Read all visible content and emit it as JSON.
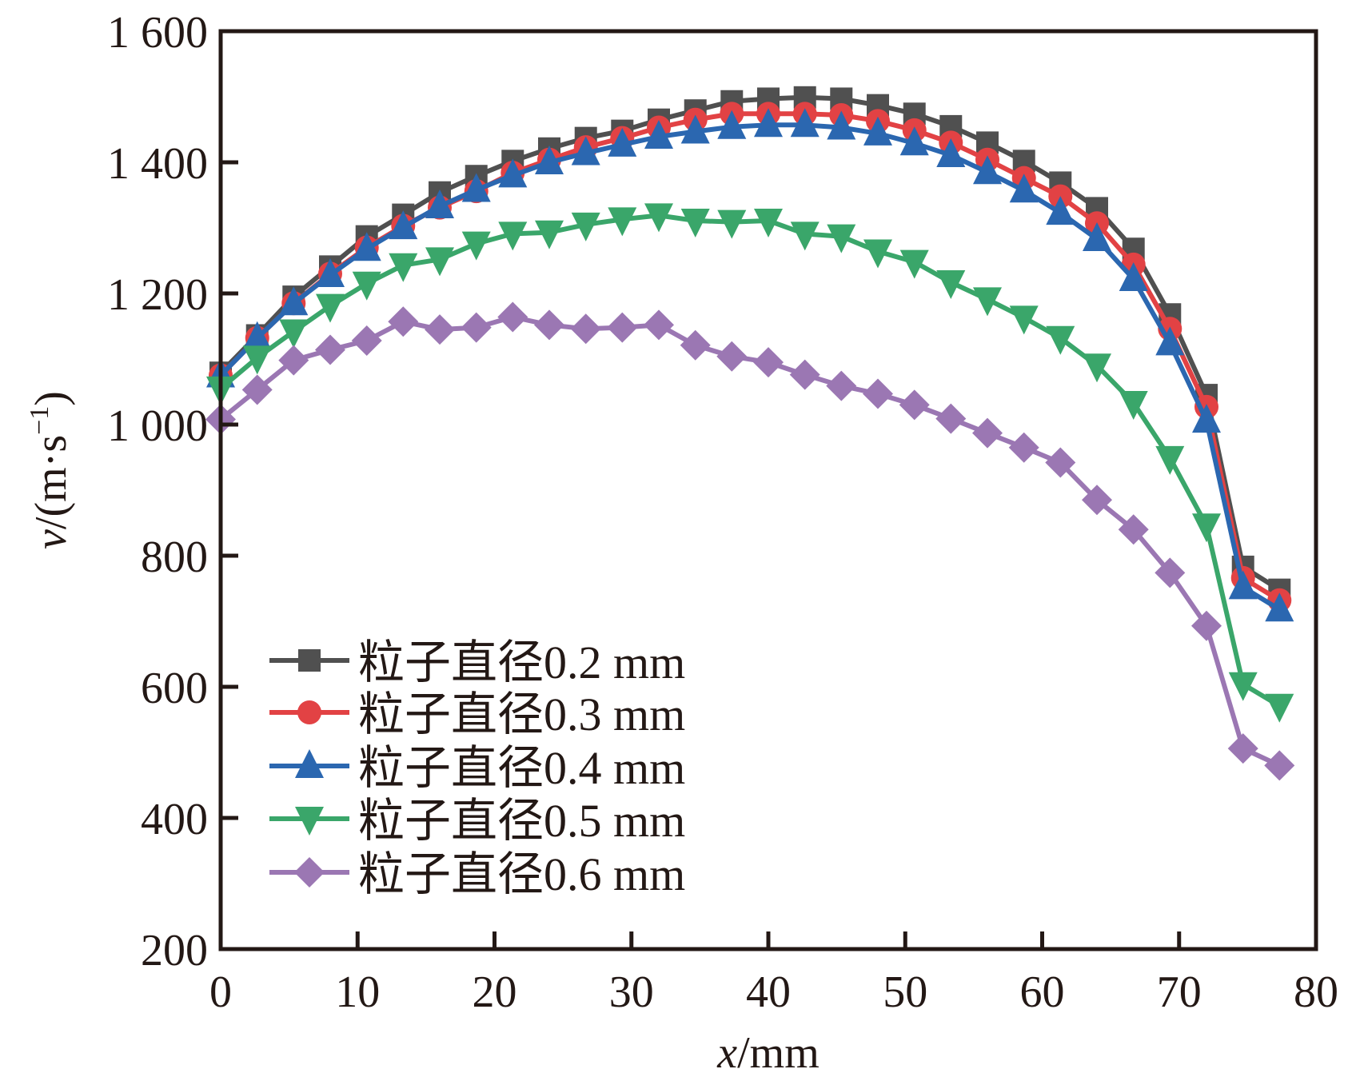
{
  "chart_data": {
    "type": "line",
    "title": "",
    "xlabel": "x/mm",
    "xlabel_var": "x",
    "xlabel_unit": "/mm",
    "ylabel": "v/(m·s⁻¹)",
    "ylabel_var": "v",
    "ylabel_unit": "/(m·s",
    "ylabel_exp": "−1",
    "ylabel_close": ")",
    "xlim": [
      0,
      80
    ],
    "ylim": [
      200,
      1600
    ],
    "x_ticks": [
      0,
      10,
      20,
      30,
      40,
      50,
      60,
      70,
      80
    ],
    "x_tick_labels": [
      "0",
      "10",
      "20",
      "30",
      "40",
      "50",
      "60",
      "70",
      "80"
    ],
    "y_ticks": [
      200,
      400,
      600,
      800,
      1000,
      1200,
      1400,
      1600
    ],
    "y_tick_labels": [
      "200",
      "400",
      "600",
      "800",
      "1 000",
      "1 200",
      "1 400",
      "1 600"
    ],
    "grid": false,
    "legend_position": "bottom-left",
    "x": [
      0,
      2.67,
      5.33,
      8,
      10.67,
      13.33,
      16,
      18.67,
      21.33,
      24,
      26.67,
      29.33,
      32,
      34.67,
      37.33,
      40,
      42.67,
      45.33,
      48,
      50.67,
      53.33,
      56,
      58.67,
      61.33,
      64,
      66.67,
      69.33,
      72,
      74.67,
      77.33
    ],
    "series": [
      {
        "name": "粒子直径0.2 mm",
        "color": "#505050",
        "marker": "square",
        "values": [
          1079,
          1136,
          1195,
          1241,
          1287,
          1320,
          1354,
          1379,
          1402,
          1421,
          1437,
          1448,
          1465,
          1479,
          1493,
          1497,
          1499,
          1497,
          1487,
          1474,
          1455,
          1430,
          1402,
          1369,
          1330,
          1268,
          1168,
          1045,
          783,
          748
        ]
      },
      {
        "name": "粒子直径0.3 mm",
        "color": "#e24244",
        "marker": "circle",
        "values": [
          1075,
          1132,
          1185,
          1230,
          1270,
          1303,
          1331,
          1356,
          1384,
          1404,
          1423,
          1437,
          1453,
          1465,
          1474,
          1474,
          1474,
          1472,
          1463,
          1449,
          1430,
          1404,
          1376,
          1348,
          1307,
          1244,
          1146,
          1027,
          766,
          732
        ]
      },
      {
        "name": "粒子直径0.4 mm",
        "color": "#2b67b0",
        "marker": "triangle-up",
        "values": [
          1075,
          1132,
          1185,
          1228,
          1268,
          1301,
          1333,
          1358,
          1380,
          1400,
          1414,
          1427,
          1439,
          1447,
          1454,
          1457,
          1457,
          1453,
          1444,
          1429,
          1411,
          1385,
          1357,
          1323,
          1283,
          1222,
          1124,
          1006,
          752,
          718
        ]
      },
      {
        "name": "粒子直径0.5 mm",
        "color": "#3aa66a",
        "marker": "triangle-down",
        "values": [
          1055,
          1102,
          1142,
          1181,
          1215,
          1243,
          1252,
          1276,
          1291,
          1293,
          1305,
          1313,
          1319,
          1311,
          1309,
          1311,
          1291,
          1287,
          1264,
          1248,
          1217,
          1191,
          1163,
          1132,
          1090,
          1033,
          949,
          846,
          604,
          571
        ]
      },
      {
        "name": "粒子直径0.6 mm",
        "color": "#9b77b3",
        "marker": "diamond",
        "values": [
          1008,
          1053,
          1098,
          1114,
          1128,
          1157,
          1145,
          1148,
          1164,
          1152,
          1146,
          1148,
          1152,
          1121,
          1104,
          1095,
          1076,
          1059,
          1047,
          1030,
          1009,
          987,
          965,
          942,
          885,
          840,
          774,
          693,
          506,
          480
        ]
      }
    ]
  }
}
